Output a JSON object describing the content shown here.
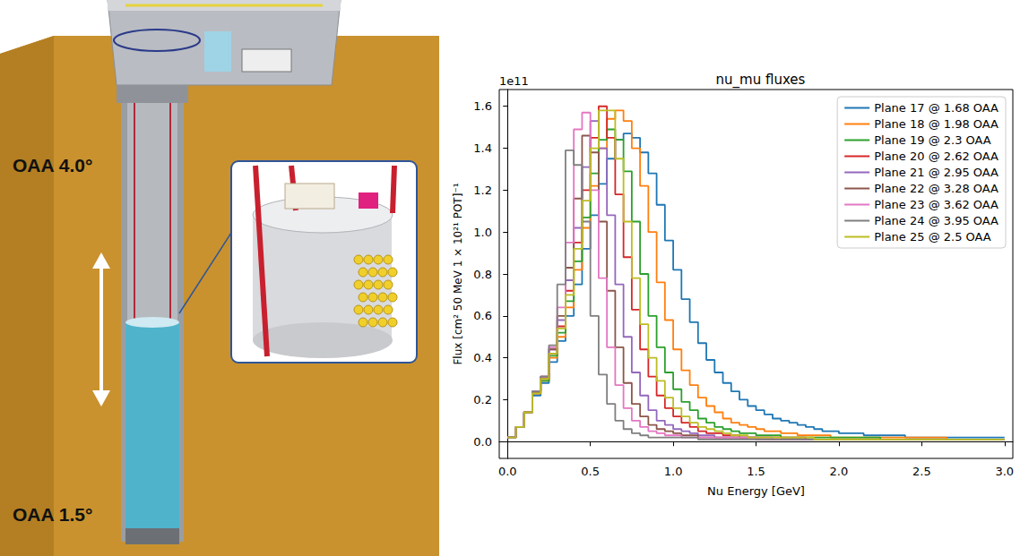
{
  "illustration": {
    "labels": [
      "OAA 4.0°",
      "OAA 1.5°"
    ]
  },
  "chart_data": {
    "type": "histogram",
    "title": "nu_mu fluxes",
    "x_label": "Nu Energy [GeV]",
    "y_label": "Flux [cm² 50 MeV 1 × 10²¹ POT]⁻¹",
    "annotations": [
      "1e11"
    ],
    "line_style": "solid",
    "legend": "upper right",
    "grid": false,
    "xlim": [
      -0.05,
      3.05
    ],
    "xticks": [
      {
        "value": 0,
        "label": "0.0"
      },
      {
        "value": 0.5,
        "label": "0.5"
      },
      {
        "value": 1,
        "label": "1.0"
      },
      {
        "value": 1.5,
        "label": "1.5"
      },
      {
        "value": 2,
        "label": "2.0"
      },
      {
        "value": 2.5,
        "label": "2.5"
      },
      {
        "value": 3,
        "label": "3.0"
      }
    ],
    "ylim": [
      -0.08,
      1.68
    ],
    "yticks": [
      {
        "value": 0,
        "label": "0.0"
      },
      {
        "value": 0.2,
        "label": "0.2"
      },
      {
        "value": 0.4,
        "label": "0.4"
      },
      {
        "value": 0.6,
        "label": "0.6"
      },
      {
        "value": 0.8,
        "label": "0.8"
      },
      {
        "value": 1,
        "label": "1.0"
      },
      {
        "value": 1.2,
        "label": "1.2"
      },
      {
        "value": 1.4,
        "label": "1.4"
      },
      {
        "value": 1.6,
        "label": "1.6"
      }
    ],
    "bins": [
      0,
      0.05,
      0.1,
      0.15,
      0.2,
      0.25,
      0.3,
      0.35,
      0.4,
      0.45,
      0.5,
      0.55,
      0.6,
      0.65,
      0.7,
      0.75,
      0.8,
      0.85,
      0.9,
      0.95,
      1,
      1.05,
      1.1,
      1.15,
      1.2,
      1.25,
      1.3,
      1.35,
      1.4,
      1.45,
      1.5,
      1.55,
      1.6,
      1.65,
      1.7,
      1.75,
      1.8,
      1.85,
      1.9,
      1.95,
      2,
      2.05,
      2.1,
      2.15,
      2.2,
      2.25,
      2.3,
      2.35,
      2.4,
      2.45,
      2.5,
      2.55,
      2.6,
      2.65,
      2.7,
      2.75,
      2.8,
      2.85,
      2.9,
      2.95,
      3
    ],
    "series": [
      {
        "name": "Plane 17 @ 1.68 OAA",
        "color": "#1f77b4",
        "values": [
          0.02,
          0.07,
          0.14,
          0.22,
          0.28,
          0.38,
          0.48,
          0.6,
          0.75,
          0.92,
          1.08,
          1.23,
          1.35,
          1.44,
          1.47,
          1.45,
          1.38,
          1.28,
          1.13,
          0.96,
          0.82,
          0.68,
          0.57,
          0.47,
          0.39,
          0.33,
          0.28,
          0.24,
          0.2,
          0.17,
          0.15,
          0.13,
          0.11,
          0.1,
          0.09,
          0.08,
          0.07,
          0.06,
          0.05,
          0.05,
          0.04,
          0.04,
          0.04,
          0.03,
          0.03,
          0.03,
          0.03,
          0.03,
          0.02,
          0.02,
          0.02,
          0.02,
          0.02,
          0.02,
          0.02,
          0.02,
          0.02,
          0.02,
          0.02,
          0.02
        ]
      },
      {
        "name": "Plane 18 @ 1.98 OAA",
        "color": "#ff7f0e",
        "values": [
          0.02,
          0.07,
          0.14,
          0.23,
          0.29,
          0.4,
          0.5,
          0.64,
          0.82,
          1.02,
          1.22,
          1.4,
          1.54,
          1.58,
          1.53,
          1.4,
          1.22,
          1.0,
          0.76,
          0.58,
          0.44,
          0.34,
          0.27,
          0.21,
          0.17,
          0.14,
          0.11,
          0.09,
          0.08,
          0.07,
          0.06,
          0.05,
          0.05,
          0.04,
          0.04,
          0.03,
          0.03,
          0.03,
          0.03,
          0.02,
          0.02,
          0.02,
          0.02,
          0.02,
          0.02,
          0.02,
          0.02,
          0.02,
          0.02,
          0.02,
          0.02,
          0.02,
          0.02,
          0.01,
          0.01,
          0.01,
          0.01,
          0.01,
          0.01,
          0.01
        ]
      },
      {
        "name": "Plane 19 @ 2.3 OAA",
        "color": "#2ca02c",
        "values": [
          0.02,
          0.07,
          0.14,
          0.23,
          0.29,
          0.41,
          0.52,
          0.67,
          0.86,
          1.07,
          1.28,
          1.44,
          1.49,
          1.44,
          1.29,
          1.05,
          0.8,
          0.6,
          0.45,
          0.33,
          0.25,
          0.19,
          0.15,
          0.11,
          0.09,
          0.07,
          0.06,
          0.05,
          0.04,
          0.04,
          0.03,
          0.03,
          0.03,
          0.02,
          0.02,
          0.02,
          0.02,
          0.02,
          0.02,
          0.02,
          0.02,
          0.02,
          0.02,
          0.02,
          0.02,
          0.01,
          0.01,
          0.01,
          0.01,
          0.01,
          0.01,
          0.01,
          0.01,
          0.01,
          0.01,
          0.01,
          0.01,
          0.01,
          0.01,
          0.01
        ]
      },
      {
        "name": "Plane 20 @ 2.62 OAA",
        "color": "#d62728",
        "values": [
          0.02,
          0.07,
          0.14,
          0.23,
          0.3,
          0.42,
          0.55,
          0.72,
          0.95,
          1.2,
          1.45,
          1.6,
          1.45,
          1.18,
          0.88,
          0.63,
          0.44,
          0.31,
          0.22,
          0.16,
          0.12,
          0.09,
          0.07,
          0.05,
          0.04,
          0.04,
          0.03,
          0.03,
          0.02,
          0.02,
          0.02,
          0.02,
          0.02,
          0.02,
          0.02,
          0.02,
          0.01,
          0.01,
          0.01,
          0.01,
          0.01,
          0.01,
          0.01,
          0.01,
          0.01,
          0.01,
          0.01,
          0.01,
          0.01,
          0.01,
          0.01,
          0.01,
          0.01,
          0.01,
          0.01,
          0.01,
          0.01,
          0.01,
          0.01,
          0.01
        ]
      },
      {
        "name": "Plane 21 @ 2.95 OAA",
        "color": "#9467bd",
        "values": [
          0.02,
          0.07,
          0.14,
          0.24,
          0.31,
          0.44,
          0.58,
          0.77,
          1.02,
          1.31,
          1.53,
          1.4,
          1.08,
          0.75,
          0.5,
          0.33,
          0.22,
          0.15,
          0.1,
          0.08,
          0.06,
          0.05,
          0.04,
          0.03,
          0.03,
          0.02,
          0.02,
          0.02,
          0.02,
          0.02,
          0.02,
          0.02,
          0.01,
          0.01,
          0.01,
          0.01,
          0.01,
          0.01,
          0.01,
          0.01,
          0.01,
          0.01,
          0.01,
          0.01,
          0.01,
          0.01,
          0.01,
          0.01,
          0.01,
          0.01,
          0.01,
          0.01,
          0.01,
          0.01,
          0.01,
          0.01,
          0.01,
          0.01,
          0.01,
          0.01
        ]
      },
      {
        "name": "Plane 22 @ 3.28 OAA",
        "color": "#8c564b",
        "values": [
          0.02,
          0.07,
          0.14,
          0.24,
          0.31,
          0.44,
          0.6,
          0.83,
          1.16,
          1.46,
          1.38,
          1.05,
          0.72,
          0.45,
          0.28,
          0.18,
          0.12,
          0.08,
          0.06,
          0.05,
          0.04,
          0.03,
          0.03,
          0.02,
          0.02,
          0.02,
          0.02,
          0.02,
          0.02,
          0.02,
          0.01,
          0.01,
          0.01,
          0.01,
          0.01,
          0.01,
          0.01,
          0.01,
          0.01,
          0.01,
          0.01,
          0.01,
          0.01,
          0.01,
          0.01,
          0.01,
          0.01,
          0.01,
          0.01,
          0.01,
          0.01,
          0.01,
          0.01,
          0.01,
          0.01,
          0.01,
          0.01,
          0.01,
          0.01,
          0.01
        ]
      },
      {
        "name": "Plane 23 @ 3.62 OAA",
        "color": "#e377c2",
        "values": [
          0.02,
          0.07,
          0.14,
          0.24,
          0.31,
          0.45,
          0.64,
          0.95,
          1.49,
          1.57,
          1.2,
          0.78,
          0.45,
          0.27,
          0.16,
          0.1,
          0.07,
          0.05,
          0.04,
          0.03,
          0.03,
          0.02,
          0.02,
          0.02,
          0.02,
          0.02,
          0.02,
          0.02,
          0.02,
          0.02,
          0.01,
          0.01,
          0.01,
          0.01,
          0.01,
          0.01,
          0.01,
          0.01,
          0.01,
          0.01,
          0.01,
          0.01,
          0.01,
          0.01,
          0.01,
          0.01,
          0.01,
          0.01,
          0.01,
          0.01,
          0.01,
          0.01,
          0.01,
          0.01,
          0.01,
          0.01,
          0.01,
          0.01,
          0.01,
          0.01
        ]
      },
      {
        "name": "Plane 24 @ 3.95 OAA",
        "color": "#7f7f7f",
        "values": [
          0.02,
          0.07,
          0.14,
          0.24,
          0.31,
          0.46,
          0.75,
          1.39,
          1.32,
          1.05,
          0.6,
          0.32,
          0.18,
          0.1,
          0.06,
          0.04,
          0.03,
          0.02,
          0.02,
          0.02,
          0.02,
          0.02,
          0.02,
          0.01,
          0.01,
          0.01,
          0.01,
          0.01,
          0.01,
          0.01,
          0.01,
          0.01,
          0.01,
          0.01,
          0.01,
          0.01,
          0.01,
          0.01,
          0.01,
          0.01,
          0.01,
          0.01,
          0.01,
          0.01,
          0.01,
          0.01,
          0.01,
          0.01,
          0.01,
          0.01,
          0.01,
          0.01,
          0.01,
          0.01,
          0.01,
          0.01,
          0.01,
          0.01,
          0.01,
          0.01
        ]
      },
      {
        "name": "Plane 25 @ 2.5 OAA",
        "color": "#bcbd22",
        "values": [
          0.02,
          0.07,
          0.14,
          0.23,
          0.3,
          0.42,
          0.54,
          0.7,
          0.92,
          1.15,
          1.4,
          1.58,
          1.58,
          1.35,
          1.05,
          0.78,
          0.56,
          0.4,
          0.29,
          0.21,
          0.16,
          0.12,
          0.09,
          0.07,
          0.06,
          0.05,
          0.04,
          0.03,
          0.03,
          0.02,
          0.02,
          0.02,
          0.02,
          0.02,
          0.02,
          0.02,
          0.02,
          0.01,
          0.01,
          0.01,
          0.01,
          0.01,
          0.01,
          0.01,
          0.01,
          0.01,
          0.01,
          0.01,
          0.01,
          0.01,
          0.01,
          0.01,
          0.01,
          0.01,
          0.01,
          0.01,
          0.01,
          0.01,
          0.01,
          0.01
        ]
      }
    ]
  }
}
